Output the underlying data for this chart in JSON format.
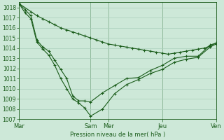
{
  "background_color": "#cde8d8",
  "grid_color": "#aacfbb",
  "line_color": "#1a5c1a",
  "ylabel": "Pression niveau de la mer( hPa )",
  "ylim": [
    1007,
    1018.5
  ],
  "yticks": [
    1007,
    1008,
    1009,
    1010,
    1011,
    1012,
    1013,
    1014,
    1015,
    1016,
    1017,
    1018
  ],
  "xtick_labels": [
    "Mar",
    "Sam",
    "Mer",
    "Jeu",
    "Ven"
  ],
  "xtick_positions": [
    0,
    12,
    15,
    24,
    33
  ],
  "series": [
    {
      "x": [
        0,
        2,
        3,
        4,
        5,
        6,
        7,
        8,
        9,
        10,
        11,
        12,
        13,
        14,
        15,
        16,
        17,
        18,
        19,
        20,
        21,
        22,
        23,
        24,
        25,
        26,
        27,
        28,
        29,
        30,
        31,
        32,
        33
      ],
      "y": [
        1018.4,
        1017.6,
        1017.2,
        1016.9,
        1016.6,
        1016.3,
        1016.0,
        1015.8,
        1015.6,
        1015.4,
        1015.2,
        1015.0,
        1014.8,
        1014.6,
        1014.4,
        1014.3,
        1014.2,
        1014.1,
        1014.0,
        1013.9,
        1013.8,
        1013.7,
        1013.6,
        1013.5,
        1013.4,
        1013.5,
        1013.6,
        1013.7,
        1013.8,
        1013.9,
        1014.0,
        1014.2,
        1014.5
      ]
    },
    {
      "x": [
        0,
        1,
        2,
        3,
        4,
        5,
        6,
        7,
        8,
        9,
        10,
        11,
        12,
        14,
        16,
        18,
        20,
        22,
        24,
        26,
        28,
        30,
        32,
        33
      ],
      "y": [
        1018.4,
        1017.8,
        1017.2,
        1014.8,
        1014.1,
        1013.7,
        1012.8,
        1011.9,
        1011.0,
        1009.3,
        1008.8,
        1008.8,
        1008.7,
        1009.6,
        1010.3,
        1011.0,
        1011.1,
        1011.8,
        1012.3,
        1013.0,
        1013.2,
        1013.2,
        1014.3,
        1014.5
      ]
    },
    {
      "x": [
        0,
        1,
        2,
        3,
        4,
        5,
        6,
        7,
        8,
        9,
        10,
        11,
        12,
        14,
        16,
        18,
        20,
        22,
        24,
        26,
        28,
        30,
        32,
        33
      ],
      "y": [
        1018.4,
        1017.5,
        1016.9,
        1014.6,
        1013.9,
        1013.3,
        1012.3,
        1011.0,
        1010.0,
        1009.0,
        1008.6,
        1008.1,
        1007.3,
        1008.0,
        1009.5,
        1010.4,
        1010.9,
        1011.5,
        1011.9,
        1012.6,
        1012.9,
        1013.1,
        1014.1,
        1014.4
      ]
    }
  ]
}
